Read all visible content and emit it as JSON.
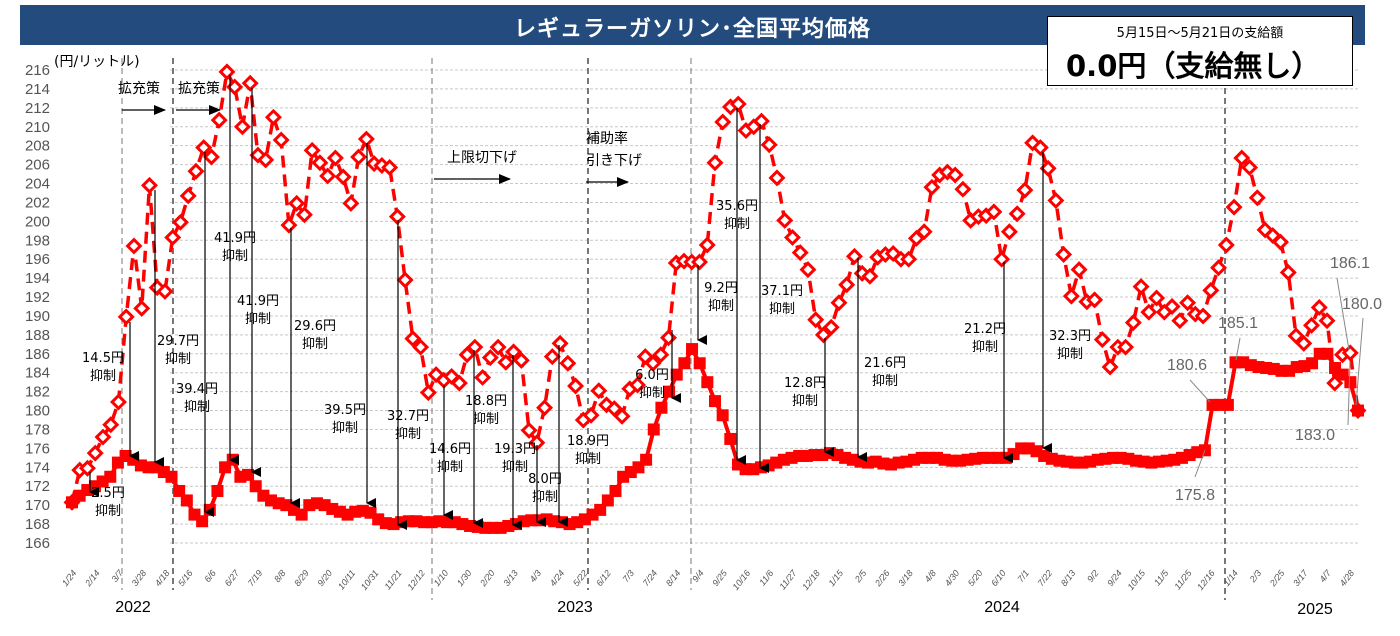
{
  "header": {
    "title": "レギュラーガソリン･全国平均価格"
  },
  "subsidy_box": {
    "period": "5月15日～5月21日の支給額",
    "amount": "0.0円（支給無し）"
  },
  "colors": {
    "header_bg": "#234b7d",
    "series": "#ff0000",
    "grid": "#c8c8c8"
  },
  "chart_data": {
    "type": "line",
    "ylabel": "(円/リットル)",
    "ylim": [
      166,
      216
    ],
    "yticks": [
      166,
      168,
      170,
      172,
      174,
      176,
      178,
      180,
      182,
      184,
      186,
      188,
      190,
      192,
      194,
      196,
      198,
      200,
      202,
      204,
      206,
      208,
      210,
      212,
      214,
      216
    ],
    "grid": true,
    "x_tick_labels": [
      "1/24",
      "2/14",
      "3/7",
      "3/28",
      "4/18",
      "5/16",
      "6/6",
      "6/27",
      "7/19",
      "8/8",
      "8/29",
      "9/20",
      "10/11",
      "10/31",
      "11/21",
      "12/12",
      "1/10",
      "1/30",
      "2/20",
      "3/13",
      "4/3",
      "4/24",
      "5/22",
      "6/12",
      "7/3",
      "7/24",
      "8/14",
      "9/4",
      "9/25",
      "10/16",
      "11/6",
      "11/27",
      "12/18",
      "1/15",
      "2/5",
      "2/26",
      "3/18",
      "4/8",
      "4/30",
      "5/20",
      "6/10",
      "7/1",
      "7/22",
      "8/13",
      "9/2",
      "9/24",
      "10/15",
      "11/5",
      "11/25",
      "12/16",
      "1/14",
      "2/3",
      "2/25",
      "3/17",
      "4/7",
      "4/28"
    ],
    "years": [
      "2022",
      "2023",
      "2024",
      "2025"
    ],
    "series": [
      {
        "style": "dashed-diamond",
        "values": [
          170.3,
          173.7,
          173.9,
          175.5,
          177.2,
          178.5,
          180.9,
          189.9,
          197.4,
          190.8,
          203.8,
          193.0,
          192.6,
          198.3,
          199.9,
          202.7,
          205.3,
          207.8,
          206.8,
          210.7,
          215.8,
          214.2,
          210.0,
          214.6,
          207.0,
          206.5,
          211.0,
          208.6,
          199.6,
          201.9,
          200.7,
          207.5,
          206.2,
          204.8,
          206.7,
          204.7,
          201.9,
          206.8,
          208.7,
          206.1,
          205.9,
          205.7,
          200.5,
          193.8,
          187.6,
          186.7,
          181.9,
          183.8,
          183.2,
          183.6,
          182.9,
          185.9,
          186.7,
          183.5,
          185.6,
          186.7,
          185.1,
          186.2,
          185.3,
          177.9,
          176.6,
          180.3,
          185.7,
          187.1,
          185.0,
          182.6,
          179.0,
          179.5,
          182.1,
          180.6,
          180.2,
          179.4,
          182.3,
          182.7,
          185.7,
          185.0,
          185.9,
          187.7,
          195.6,
          195.8,
          195.7,
          195.7,
          197.5,
          206.2,
          210.5,
          212.1,
          212.4,
          209.6,
          210.0,
          210.6,
          208.1,
          204.6,
          200.1,
          198.3,
          196.7,
          194.9,
          189.6,
          188.0,
          188.8,
          191.4,
          193.3,
          196.3,
          194.5,
          194.2,
          196.2,
          196.5,
          196.6,
          196.0,
          196.0,
          198.2,
          198.9,
          203.6,
          204.9,
          205.2,
          204.9,
          203.4,
          200.1,
          200.5,
          200.6,
          201.0,
          196.0,
          198.9,
          200.8,
          203.3,
          208.3,
          207.8,
          205.6,
          202.2,
          196.5,
          192.1,
          194.9,
          191.5,
          191.7,
          187.5,
          184.6,
          186.7,
          186.7,
          189.3,
          193.1,
          190.4,
          191.9,
          190.4,
          191.0,
          189.5,
          191.4,
          190.2,
          190.0,
          192.7,
          195.1,
          197.5,
          201.5,
          206.7,
          205.7,
          202.5,
          199.1,
          198.5,
          197.8,
          194.6,
          187.9,
          187.1,
          189.0,
          190.9,
          189.5,
          182.9,
          185.9,
          186.1,
          180.0
        ]
      },
      {
        "style": "solid-square",
        "values": [
          170.3,
          171.0,
          171.6,
          172.0,
          172.5,
          173.0,
          174.5,
          175.2,
          174.8,
          174.2,
          174.0,
          174.0,
          173.5,
          173.0,
          171.5,
          170.5,
          169.0,
          168.3,
          169.5,
          171.5,
          174.0,
          174.8,
          173.0,
          173.2,
          172.0,
          171.0,
          170.5,
          170.2,
          170.0,
          169.5,
          169.0,
          170.0,
          170.2,
          170.0,
          169.6,
          169.3,
          169.0,
          169.3,
          169.4,
          169.2,
          168.5,
          168.1,
          168.0,
          168.2,
          168.3,
          168.3,
          168.2,
          168.2,
          168.3,
          168.2,
          168.2,
          168.0,
          167.8,
          167.7,
          167.6,
          167.6,
          167.6,
          167.8,
          168.0,
          168.3,
          168.4,
          168.4,
          168.5,
          168.3,
          168.2,
          168.0,
          168.2,
          168.5,
          169.0,
          169.5,
          170.5,
          171.5,
          173.0,
          173.5,
          174.0,
          174.8,
          178.0,
          180.3,
          182.0,
          183.8,
          185.0,
          186.5,
          185.0,
          183.0,
          181.0,
          179.5,
          177.0,
          174.3,
          173.8,
          173.8,
          174.0,
          174.2,
          174.5,
          174.8,
          175.0,
          175.2,
          175.2,
          175.3,
          175.3,
          175.5,
          175.3,
          175.0,
          174.8,
          174.6,
          174.5,
          174.6,
          174.4,
          174.3,
          174.5,
          174.6,
          174.8,
          175.0,
          175.0,
          175.0,
          174.8,
          174.7,
          174.7,
          174.8,
          174.9,
          175.0,
          175.0,
          175.0,
          175.0,
          175.4,
          176.0,
          176.0,
          175.7,
          175.2,
          174.9,
          174.7,
          174.6,
          174.5,
          174.5,
          174.6,
          174.8,
          174.9,
          175.0,
          175.0,
          174.9,
          174.7,
          174.6,
          174.5,
          174.6,
          174.7,
          174.8,
          175.0,
          175.3,
          175.6,
          175.8,
          180.6,
          180.6,
          180.6,
          185.1,
          185.1,
          184.8,
          184.6,
          184.5,
          184.4,
          184.2,
          184.2,
          184.6,
          184.7,
          185.0,
          186.0,
          186.0,
          184.5,
          183.8,
          183.0,
          180.0
        ]
      }
    ],
    "point_labels": [
      "175.8",
      "180.6",
      "185.1",
      "186.1",
      "180.0",
      "183.0"
    ],
    "annotations": [
      {
        "amount": "2.5円",
        "label": "抑制"
      },
      {
        "amount": "14.5円",
        "label": "抑制"
      },
      {
        "amount": "29.7円",
        "label": "抑制"
      },
      {
        "amount": "39.4円",
        "label": "抑制"
      },
      {
        "amount": "41.9円",
        "label": "抑制"
      },
      {
        "amount": "41.9円",
        "label": "抑制"
      },
      {
        "amount": "29.6円",
        "label": "抑制"
      },
      {
        "amount": "39.5円",
        "label": "抑制"
      },
      {
        "amount": "32.7円",
        "label": "抑制"
      },
      {
        "amount": "14.6円",
        "label": "抑制"
      },
      {
        "amount": "18.8円",
        "label": "抑制"
      },
      {
        "amount": "19.3円",
        "label": "抑制"
      },
      {
        "amount": "8.0円",
        "label": "抑制"
      },
      {
        "amount": "18.9円",
        "label": "抑制"
      },
      {
        "amount": "6.0円",
        "label": "抑制"
      },
      {
        "amount": "9.2円",
        "label": "抑制"
      },
      {
        "amount": "35.6円",
        "label": "抑制"
      },
      {
        "amount": "37.1円",
        "label": "抑制"
      },
      {
        "amount": "12.8円",
        "label": "抑制"
      },
      {
        "amount": "21.6円",
        "label": "抑制"
      },
      {
        "amount": "21.2円",
        "label": "抑制"
      },
      {
        "amount": "32.3円",
        "label": "抑制"
      }
    ],
    "policy_notes": [
      {
        "lines": [
          "拡充策"
        ]
      },
      {
        "lines": [
          "拡充策"
        ]
      },
      {
        "lines": [
          "上限切下げ"
        ]
      },
      {
        "lines": [
          "補助率",
          "引き下げ"
        ]
      }
    ]
  }
}
